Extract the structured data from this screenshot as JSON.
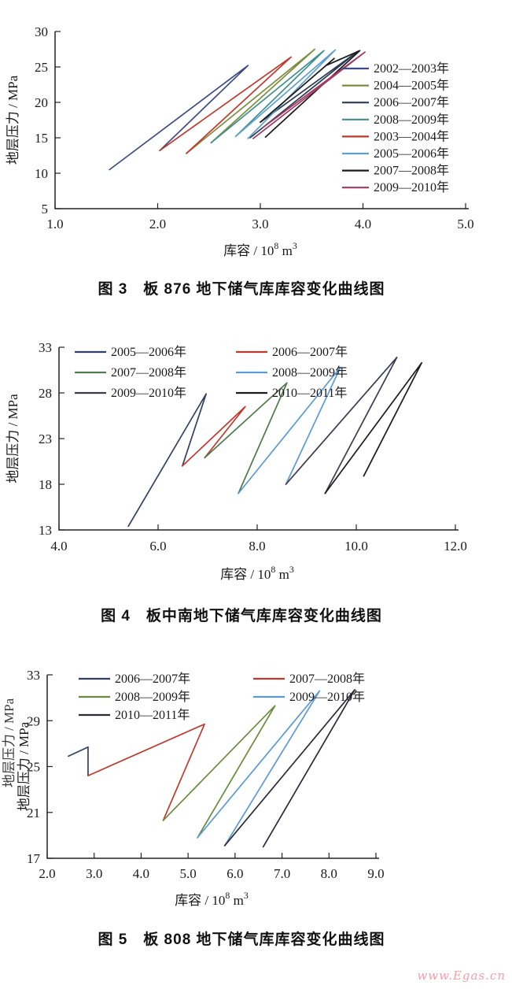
{
  "page": {
    "background": "#ffffff"
  },
  "watermark": {
    "text": "www.Egas.cn",
    "color": "#f29faa"
  },
  "chart_data": [
    {
      "id": "figure-3",
      "type": "line",
      "caption": "图 3　板 876 地下储气库库容变化曲线图",
      "xlabel": "库容 / 10^8 m^3",
      "ylabel": "地层压力 / MPa",
      "xlim": [
        1.0,
        5.0
      ],
      "ylim": [
        5,
        30
      ],
      "xticks": [
        "1.0",
        "2.0",
        "3.0",
        "4.0",
        "5.0"
      ],
      "yticks": [
        "5",
        "10",
        "15",
        "20",
        "25",
        "30"
      ],
      "grid": false,
      "legend": {
        "position": "right-inside",
        "columns": 1
      },
      "series": [
        {
          "name": "2002—2003年",
          "color": "#3c4a87",
          "points": [
            [
              1.53,
              10.5
            ],
            [
              2.88,
              25.2
            ],
            [
              2.02,
              13.2
            ]
          ]
        },
        {
          "name": "2004—2005年",
          "color": "#7d8c3f",
          "points": [
            [
              2.28,
              12.8
            ],
            [
              3.53,
              27.5
            ],
            [
              2.52,
              14.3
            ]
          ]
        },
        {
          "name": "2006—2007年",
          "color": "#2b3a55",
          "points": [
            [
              2.9,
              15.0
            ],
            [
              3.95,
              27.2
            ],
            [
              3.0,
              17.2
            ]
          ]
        },
        {
          "name": "2008—2009年",
          "color": "#3f8f8f",
          "points": [
            [
              2.52,
              14.3
            ],
            [
              3.62,
              27.3
            ],
            [
              2.76,
              15.2
            ]
          ]
        },
        {
          "name": "2003—2004年",
          "color": "#c0392b",
          "points": [
            [
              2.02,
              13.2
            ],
            [
              3.3,
              26.4
            ],
            [
              2.28,
              12.8
            ]
          ]
        },
        {
          "name": "2005—2006年",
          "color": "#5e9fd0",
          "points": [
            [
              2.76,
              15.2
            ],
            [
              3.73,
              27.4
            ],
            [
              2.88,
              14.9
            ]
          ]
        },
        {
          "name": "2007—2008年",
          "color": "#1a1a1a",
          "points": [
            [
              3.0,
              17.2
            ],
            [
              3.72,
              26.2
            ],
            [
              3.64,
              25.2
            ],
            [
              3.97,
              27.3
            ],
            [
              3.05,
              15.1
            ]
          ]
        },
        {
          "name": "2009—2010年",
          "color": "#a03a62",
          "points": [
            [
              2.93,
              14.9
            ],
            [
              4.02,
              27.1
            ],
            [
              3.03,
              16.5
            ]
          ]
        }
      ]
    },
    {
      "id": "figure-4",
      "type": "line",
      "caption": "图 4　板中南地下储气库库容变化曲线图",
      "xlabel": "库容 / 10^8 m^3",
      "ylabel": "地层压力 / MPa",
      "xlim": [
        4.0,
        12.0
      ],
      "ylim": [
        13,
        33
      ],
      "xticks": [
        "4.0",
        "6.0",
        "8.0",
        "10.0",
        "12.0"
      ],
      "yticks": [
        "13",
        "18",
        "23",
        "28",
        "33"
      ],
      "grid": false,
      "legend": {
        "position": "top-left-inside",
        "columns": 2
      },
      "series": [
        {
          "name": "2005—2006年",
          "color": "#333f66",
          "points": [
            [
              5.4,
              13.4
            ],
            [
              6.97,
              27.9
            ],
            [
              6.49,
              20.0
            ]
          ]
        },
        {
          "name": "2006—2007年",
          "color": "#c0392b",
          "points": [
            [
              6.49,
              20.0
            ],
            [
              7.76,
              26.5
            ],
            [
              6.94,
              20.9
            ]
          ]
        },
        {
          "name": "2007—2008年",
          "color": "#4e7a4e",
          "points": [
            [
              6.94,
              20.9
            ],
            [
              8.6,
              29.1
            ],
            [
              7.62,
              17.0
            ]
          ]
        },
        {
          "name": "2008—2009年",
          "color": "#5b9bd5",
          "points": [
            [
              7.62,
              17.0
            ],
            [
              9.68,
              30.8
            ],
            [
              8.58,
              18.0
            ]
          ]
        },
        {
          "name": "2009—2010年",
          "color": "#3b3b52",
          "points": [
            [
              8.58,
              18.0
            ],
            [
              10.82,
              31.9
            ],
            [
              9.37,
              17.0
            ]
          ]
        },
        {
          "name": "2010—2011年",
          "color": "#1c1c1c",
          "points": [
            [
              9.37,
              17.0
            ],
            [
              11.32,
              31.3
            ],
            [
              10.15,
              18.9
            ]
          ]
        }
      ]
    },
    {
      "id": "figure-5",
      "type": "line",
      "caption": "图 5　板 808 地下储气库库容变化曲线图",
      "xlabel": "库容 / 10^8 m^3",
      "ylabel": "地层压力 / MPa",
      "ylabel_ghost": true,
      "xlim": [
        2.0,
        9.0
      ],
      "ylim": [
        17,
        33
      ],
      "xticks": [
        "2.0",
        "3.0",
        "4.0",
        "5.0",
        "6.0",
        "7.0",
        "8.0",
        "9.0"
      ],
      "yticks": [
        "17",
        "21",
        "25",
        "29",
        "33"
      ],
      "grid": false,
      "legend": {
        "position": "top-left-inside",
        "columns": 2
      },
      "series": [
        {
          "name": "2006—2007年",
          "color": "#333f66",
          "points": [
            [
              2.45,
              25.9
            ],
            [
              2.87,
              26.7
            ],
            [
              2.87,
              24.2
            ]
          ]
        },
        {
          "name": "2007—2008年",
          "color": "#c0392b",
          "points": [
            [
              2.87,
              24.2
            ],
            [
              5.35,
              28.7
            ],
            [
              4.47,
              20.3
            ]
          ]
        },
        {
          "name": "2008—2009年",
          "color": "#6a8a3c",
          "points": [
            [
              4.47,
              20.3
            ],
            [
              6.85,
              30.3
            ],
            [
              5.2,
              18.8
            ]
          ]
        },
        {
          "name": "2009—2010年",
          "color": "#5b9bd5",
          "points": [
            [
              5.2,
              18.8
            ],
            [
              7.8,
              31.6
            ],
            [
              5.78,
              18.1
            ]
          ]
        },
        {
          "name": "2010—2011年",
          "color": "#2a2a38",
          "points": [
            [
              5.78,
              18.1
            ],
            [
              8.55,
              31.7
            ],
            [
              6.6,
              18.0
            ]
          ]
        }
      ]
    }
  ]
}
